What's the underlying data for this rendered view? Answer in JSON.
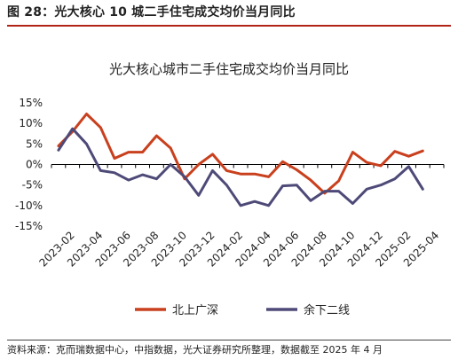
{
  "figure_label": "图 28：光大核心 10 城二手住宅成交均价当月同比",
  "source_note": "资料来源：克而瑞数据中心，中指数据，光大证券研究所整理，数据截至 2025 年 4 月",
  "chart_data": {
    "type": "line",
    "title": "光大核心城市二手住宅成交均价当月同比",
    "xlabel": "",
    "ylabel": "",
    "ylim": [
      -15,
      15
    ],
    "y_ticks": [
      "15%",
      "10%",
      "5%",
      "0%",
      "-5%",
      "-10%",
      "-15%"
    ],
    "y_tick_values": [
      15,
      10,
      5,
      0,
      -5,
      -10,
      -15
    ],
    "x": [
      "2023-01",
      "2023-02",
      "2023-03",
      "2023-04",
      "2023-05",
      "2023-06",
      "2023-07",
      "2023-08",
      "2023-09",
      "2023-10",
      "2023-11",
      "2023-12",
      "2024-01",
      "2024-02",
      "2024-03",
      "2024-04",
      "2024-05",
      "2024-06",
      "2024-07",
      "2024-08",
      "2024-09",
      "2024-10",
      "2024-11",
      "2024-12",
      "2025-01",
      "2025-02",
      "2025-03",
      "2025-04"
    ],
    "x_tick_labels": [
      "2023-02",
      "2023-04",
      "2023-06",
      "2023-08",
      "2023-10",
      "2023-12",
      "2024-02",
      "2024-04",
      "2024-06",
      "2024-08",
      "2024-10",
      "2024-12",
      "2025-02",
      "2025-04"
    ],
    "series": [
      {
        "name": "北上广深",
        "color": "#c9401e",
        "values": [
          4.5,
          8.0,
          12.3,
          9.0,
          1.5,
          3.0,
          3.0,
          7.0,
          4.0,
          -3.5,
          0.0,
          2.5,
          -1.5,
          -2.3,
          -2.3,
          -3.0,
          0.7,
          -1.3,
          -3.8,
          -7.0,
          -4.0,
          3.0,
          0.5,
          -0.3,
          3.2,
          2.0,
          3.3,
          null
        ]
      },
      {
        "name": "余下二线",
        "color": "#4e4a78",
        "values": [
          3.5,
          8.7,
          5.0,
          -1.5,
          -2.0,
          -3.8,
          -2.5,
          -3.5,
          0.0,
          -3.0,
          -7.5,
          -1.5,
          -5.0,
          -10.0,
          -9.0,
          -10.0,
          -5.2,
          -5.0,
          -8.8,
          -6.5,
          -6.5,
          -9.5,
          -6.0,
          -5.0,
          -3.5,
          -0.5,
          -6.0,
          null
        ]
      }
    ],
    "legend_position": "bottom-center",
    "grid": false
  }
}
